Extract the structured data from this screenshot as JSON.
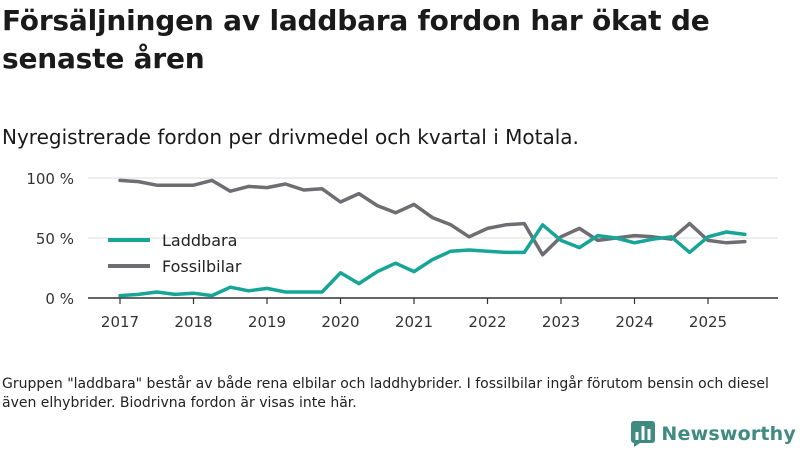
{
  "title": "Försäljningen av laddbara fordon har ökat de senaste åren",
  "subtitle": "Nyregistrerade fordon per drivmedel och kvartal i Motala.",
  "footnote": "Gruppen \"laddbara\" består av både rena elbilar och laddhybrider. I fossilbilar ingår förutom bensin och diesel även elhybrider. Biodrivna fordon är visas inte här.",
  "brand": {
    "name": "Newsworthy",
    "icon": "bar-chart-logo-icon"
  },
  "colors": {
    "laddbara": "#16a596",
    "fossilbilar": "#6e6d72",
    "grid": "#dddddd",
    "axis": "#333333"
  },
  "chart_data": {
    "type": "line",
    "title": "Nyregistrerade fordon per drivmedel och kvartal i Motala.",
    "xlabel": "",
    "ylabel": "",
    "ylim": [
      0,
      100
    ],
    "y_ticks": [
      0,
      50,
      100
    ],
    "y_tick_labels": [
      "0 %",
      "50 %",
      "100 %"
    ],
    "x_range": [
      2017,
      2025.75
    ],
    "x_ticks": [
      2017,
      2018,
      2019,
      2020,
      2021,
      2022,
      2023,
      2024,
      2025
    ],
    "x_tick_labels": [
      "2017",
      "2018",
      "2019",
      "2020",
      "2021",
      "2022",
      "2023",
      "2024",
      "2025"
    ],
    "x": [
      2017.0,
      2017.25,
      2017.5,
      2017.75,
      2018.0,
      2018.25,
      2018.5,
      2018.75,
      2019.0,
      2019.25,
      2019.5,
      2019.75,
      2020.0,
      2020.25,
      2020.5,
      2020.75,
      2021.0,
      2021.25,
      2021.5,
      2021.75,
      2022.0,
      2022.25,
      2022.5,
      2022.75,
      2023.0,
      2023.25,
      2023.5,
      2023.75,
      2024.0,
      2024.25,
      2024.5,
      2024.75,
      2025.0,
      2025.25,
      2025.5
    ],
    "legend_position": "left",
    "series": [
      {
        "name": "Laddbara",
        "color": "#16a596",
        "values": [
          2,
          3,
          5,
          3,
          4,
          2,
          9,
          6,
          8,
          5,
          5,
          5,
          21,
          12,
          22,
          29,
          22,
          32,
          39,
          40,
          39,
          38,
          38,
          61,
          48,
          42,
          52,
          50,
          46,
          49,
          51,
          38,
          51,
          55,
          53
        ]
      },
      {
        "name": "Fossilbilar",
        "color": "#6e6d72",
        "values": [
          98,
          97,
          94,
          94,
          94,
          98,
          89,
          93,
          92,
          95,
          90,
          91,
          80,
          87,
          77,
          71,
          78,
          67,
          61,
          51,
          58,
          61,
          62,
          36,
          51,
          58,
          48,
          50,
          52,
          51,
          49,
          62,
          48,
          46,
          47
        ]
      }
    ]
  }
}
